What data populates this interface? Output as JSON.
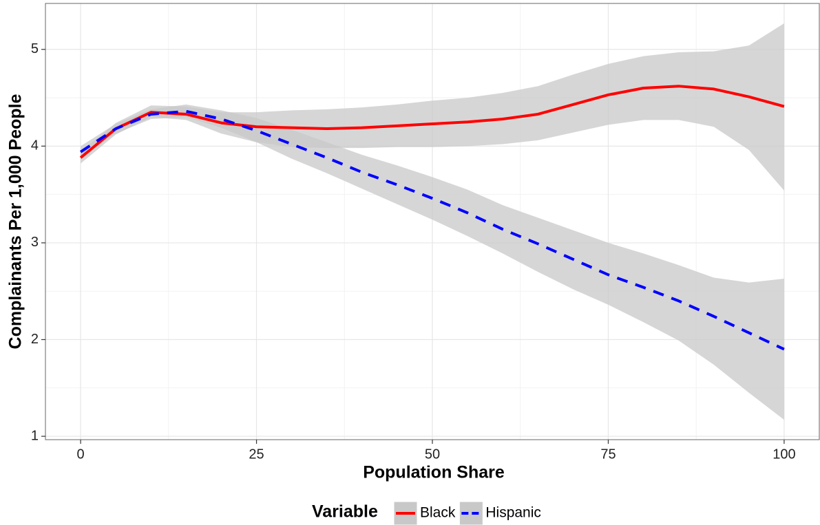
{
  "chart_data": {
    "type": "line",
    "x_label": "Population Share",
    "y_label": "Complainants Per 1,000 People",
    "legend_title": "Variable",
    "legend_position": "bottom",
    "grid": true,
    "band_color": "#c8c8c8",
    "x": [
      0,
      5,
      10,
      15,
      20,
      25,
      30,
      35,
      40,
      45,
      50,
      55,
      60,
      65,
      70,
      75,
      80,
      85,
      90,
      95,
      100
    ],
    "series": [
      {
        "name": "Black",
        "color": "#ff0000",
        "dash": "solid",
        "values": [
          3.88,
          4.18,
          4.35,
          4.33,
          4.24,
          4.2,
          4.19,
          4.18,
          4.19,
          4.21,
          4.23,
          4.25,
          4.28,
          4.33,
          4.43,
          4.53,
          4.6,
          4.62,
          4.59,
          4.51,
          4.41
        ],
        "lower": [
          3.82,
          4.12,
          4.3,
          4.27,
          4.13,
          4.04,
          3.99,
          3.98,
          3.98,
          3.99,
          3.99,
          4.0,
          4.02,
          4.06,
          4.14,
          4.22,
          4.27,
          4.27,
          4.2,
          3.96,
          3.54
        ],
        "upper": [
          3.94,
          4.24,
          4.42,
          4.41,
          4.35,
          4.35,
          4.37,
          4.38,
          4.4,
          4.43,
          4.47,
          4.5,
          4.55,
          4.62,
          4.74,
          4.85,
          4.93,
          4.97,
          4.98,
          5.04,
          5.27
        ]
      },
      {
        "name": "Hispanic",
        "color": "#0000ff",
        "dash": "dashed",
        "values": [
          3.94,
          4.18,
          4.33,
          4.36,
          4.28,
          4.16,
          4.02,
          3.88,
          3.73,
          3.6,
          3.46,
          3.31,
          3.14,
          2.99,
          2.83,
          2.67,
          2.54,
          2.4,
          2.24,
          2.07,
          1.9
        ],
        "lower": [
          3.88,
          4.13,
          4.28,
          4.3,
          4.19,
          4.04,
          3.87,
          3.72,
          3.56,
          3.4,
          3.24,
          3.07,
          2.89,
          2.7,
          2.52,
          2.36,
          2.18,
          1.99,
          1.74,
          1.45,
          1.17
        ],
        "upper": [
          4.0,
          4.23,
          4.38,
          4.43,
          4.37,
          4.29,
          4.17,
          4.04,
          3.91,
          3.8,
          3.68,
          3.55,
          3.39,
          3.26,
          3.13,
          3.0,
          2.89,
          2.77,
          2.64,
          2.59,
          2.63
        ]
      }
    ],
    "xlim": [
      -5,
      105
    ],
    "ylim": [
      0.965,
      5.475
    ],
    "xticks": [
      0,
      25,
      50,
      75,
      100
    ],
    "yticks": [
      1,
      2,
      3,
      4,
      5
    ],
    "xminorticks": [
      12.5,
      37.5,
      62.5,
      87.5
    ],
    "yminorticks": [
      1.5,
      2.5,
      3.5,
      4.5
    ]
  }
}
